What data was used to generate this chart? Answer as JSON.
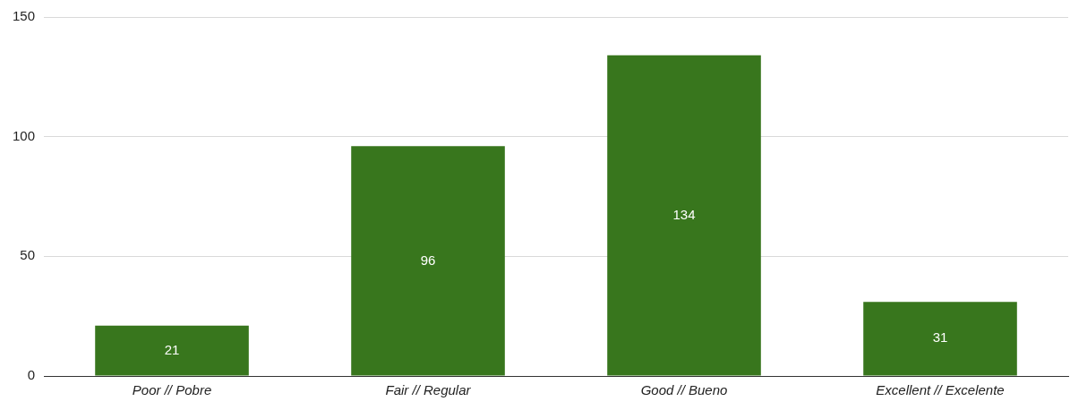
{
  "chart_data": {
    "type": "bar",
    "categories": [
      "Poor // Pobre",
      "Fair // Regular",
      "Good // Bueno",
      "Excellent // Excelente"
    ],
    "values": [
      21,
      96,
      134,
      31
    ],
    "color": "#38761d",
    "ylim": [
      0,
      150
    ],
    "yticks": [
      0,
      50,
      100,
      150
    ],
    "grid": "y",
    "legend": false,
    "data_labels": true
  }
}
